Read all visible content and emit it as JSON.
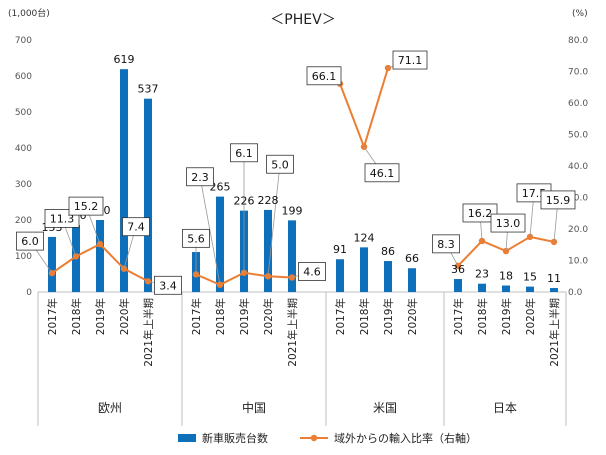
{
  "chart_data": {
    "type": "bar",
    "title": "＜PHEV＞",
    "y_left_unit": "(1,000台)",
    "y_right_unit": "(%)",
    "y_left_ticks": [
      "0",
      "100",
      "200",
      "300",
      "400",
      "500",
      "600",
      "700"
    ],
    "y_right_ticks": [
      "0.0",
      "10.0",
      "20.0",
      "30.0",
      "40.0",
      "50.0",
      "60.0",
      "70.0",
      "80.0"
    ],
    "ylim_left": [
      0,
      700
    ],
    "ylim_right": [
      0,
      80
    ],
    "colors": {
      "bar": "#0e6fba",
      "line": "#ed7d31"
    },
    "groups": [
      {
        "name": "欧州",
        "categories": [
          "2017年",
          "2018年",
          "2019年",
          "2020年",
          "2021年上半期"
        ],
        "bar_values": [
          153,
          186,
          200,
          619,
          537
        ],
        "bar_labels": [
          "153",
          "186",
          "200",
          "619",
          "537"
        ],
        "ratio_values": [
          6.0,
          11.3,
          15.2,
          7.4,
          3.4
        ],
        "ratio_labels": [
          "6.0",
          "11.3",
          "15.2",
          "7.4",
          "3.4"
        ]
      },
      {
        "name": "中国",
        "categories": [
          "2017年",
          "2018年",
          "2019年",
          "2020年",
          "2021年上半期"
        ],
        "bar_values": [
          111,
          265,
          226,
          228,
          199
        ],
        "bar_labels": [
          "111",
          "265",
          "226",
          "228",
          "199"
        ],
        "ratio_values": [
          5.6,
          2.3,
          6.1,
          5.0,
          4.6
        ],
        "ratio_labels": [
          "5.6",
          "2.3",
          "6.1",
          "5.0",
          "4.6"
        ]
      },
      {
        "name": "米国",
        "categories": [
          "2017年",
          "2018年",
          "2019年",
          "2020年"
        ],
        "bar_values": [
          91,
          124,
          86,
          66
        ],
        "bar_labels": [
          "91",
          "124",
          "86",
          "66"
        ],
        "ratio_values": [
          66.1,
          46.1,
          71.1
        ],
        "ratio_labels": [
          "66.1",
          "46.1",
          "71.1"
        ]
      },
      {
        "name": "日本",
        "categories": [
          "2017年",
          "2018年",
          "2019年",
          "2020年",
          "2021年上半期"
        ],
        "bar_values": [
          36,
          23,
          18,
          15,
          11
        ],
        "bar_labels": [
          "36",
          "23",
          "18",
          "15",
          "11"
        ],
        "ratio_values": [
          8.3,
          16.2,
          13.0,
          17.5,
          15.9
        ],
        "ratio_labels": [
          "8.3",
          "16.2",
          "13.0",
          "17.5",
          "15.9"
        ]
      }
    ],
    "legend": {
      "bar": "新車販売台数",
      "line": "域外からの輸入比率（右軸）"
    }
  }
}
